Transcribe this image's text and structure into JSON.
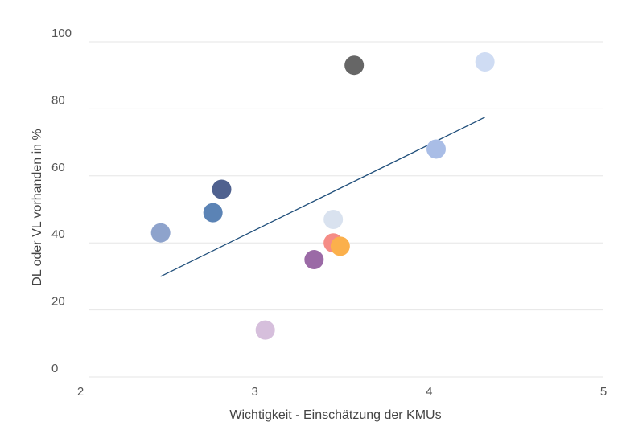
{
  "chart_data": {
    "type": "scatter",
    "title": "",
    "xlabel": "Wichtigkeit - Einschätzung der KMUs",
    "ylabel": "DL oder VL vorhanden in %",
    "xlim": [
      2,
      5
    ],
    "ylim": [
      0,
      100
    ],
    "x_ticks": [
      "2",
      "3",
      "4",
      "5"
    ],
    "y_ticks": [
      "0",
      "20",
      "40",
      "60",
      "80",
      "100"
    ],
    "grid": "horizontal",
    "points": [
      {
        "x": 2.46,
        "y": 43,
        "color": "#8ea3cc"
      },
      {
        "x": 2.76,
        "y": 49,
        "color": "#5b83b5"
      },
      {
        "x": 2.81,
        "y": 56,
        "color": "#4f618f"
      },
      {
        "x": 3.06,
        "y": 14,
        "color": "#d6bfdc"
      },
      {
        "x": 3.34,
        "y": 35,
        "color": "#9b6aa6"
      },
      {
        "x": 3.45,
        "y": 47,
        "color": "#d9e2ef"
      },
      {
        "x": 3.45,
        "y": 40,
        "color": "#f58c86"
      },
      {
        "x": 3.49,
        "y": 39,
        "color": "#fbb04c"
      },
      {
        "x": 3.57,
        "y": 93,
        "color": "#666666"
      },
      {
        "x": 4.04,
        "y": 68,
        "color": "#a9bde6"
      },
      {
        "x": 4.32,
        "y": 94,
        "color": "#cfdcf3"
      }
    ],
    "trendline": {
      "x": [
        2.46,
        4.32
      ],
      "y": [
        30,
        77.5
      ],
      "color": "#1f4e7a"
    }
  }
}
